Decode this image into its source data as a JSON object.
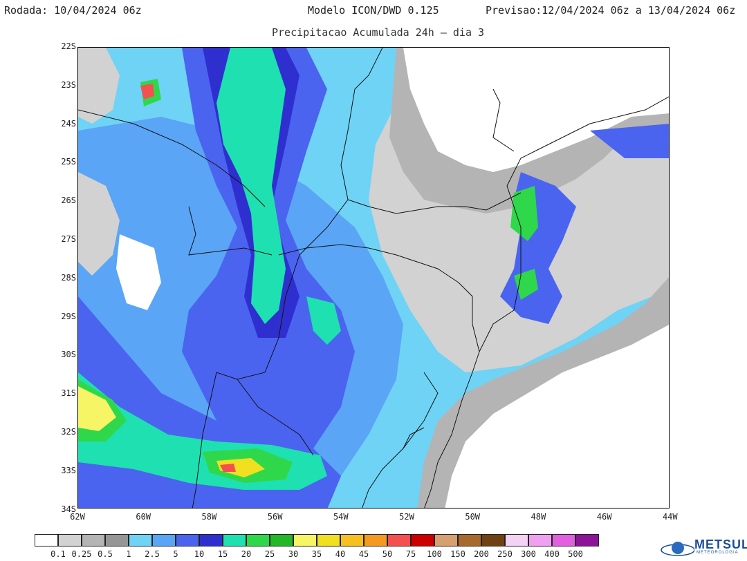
{
  "header": {
    "rodada": "Rodada: 10/04/2024 06z",
    "modelo": "Modelo ICON/DWD 0.125",
    "previsao": "Previsao:12/04/2024 06z a 13/04/2024 06z"
  },
  "subtitle": "Precipitacao Acumulada 24h – dia 3",
  "axes": {
    "lat_labels": [
      "22S",
      "23S",
      "24S",
      "25S",
      "26S",
      "27S",
      "28S",
      "29S",
      "30S",
      "31S",
      "32S",
      "33S",
      "34S"
    ],
    "lon_labels": [
      "62W",
      "60W",
      "58W",
      "56W",
      "54W",
      "52W",
      "50W",
      "48W",
      "46W",
      "44W"
    ]
  },
  "legend": {
    "labels": [
      "0.1",
      "0.25",
      "0.5",
      "1",
      "2.5",
      "5",
      "10",
      "15",
      "20",
      "25",
      "30",
      "35",
      "40",
      "45",
      "50",
      "75",
      "100",
      "150",
      "200",
      "250",
      "300",
      "400",
      "500"
    ],
    "colors": [
      "#ffffff",
      "#d2d2d2",
      "#b4b4b4",
      "#969696",
      "#6fd3f5",
      "#5aa5f5",
      "#4a64f0",
      "#2f2fd0",
      "#1fe0b0",
      "#2ed84a",
      "#22b82a",
      "#f5f566",
      "#f0e020",
      "#f5c020",
      "#f59a20",
      "#f55050",
      "#cc0000",
      "#d6a070",
      "#a8692e",
      "#6e4212",
      "#f4d2f4",
      "#f0a0f0",
      "#e060e0",
      "#8c1496"
    ]
  },
  "logo": {
    "name": "METSUL",
    "tagline": "METEOROLOGIA",
    "icon": "globe-icon"
  }
}
